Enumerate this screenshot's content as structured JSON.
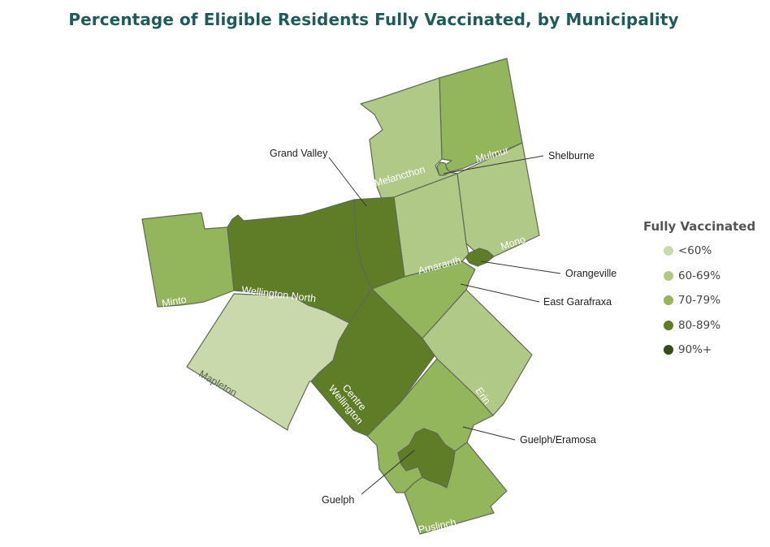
{
  "title": "Percentage of Eligible Residents Fully Vaccinated, by Municipality",
  "legend": {
    "title": "Fully Vaccinated",
    "items": [
      {
        "label": "<60%",
        "color": "#cad9ac"
      },
      {
        "label": "60-69%",
        "color": "#b1c986"
      },
      {
        "label": "70-79%",
        "color": "#93b55c"
      },
      {
        "label": "80-89%",
        "color": "#5e7d26"
      },
      {
        "label": "90%+",
        "color": "#334d14"
      }
    ]
  },
  "regions": [
    {
      "name": "Melancthon",
      "band": "60-69%",
      "color": "#b1c986"
    },
    {
      "name": "Mulmur",
      "band": "70-79%",
      "color": "#93b55c"
    },
    {
      "name": "Shelburne",
      "band": "70-79%",
      "color": "#93b55c"
    },
    {
      "name": "Grand Valley",
      "band": "80-89%",
      "color": "#5e7d26"
    },
    {
      "name": "Amaranth",
      "band": "60-69%",
      "color": "#b1c986"
    },
    {
      "name": "Mono",
      "band": "60-69%",
      "color": "#b1c986"
    },
    {
      "name": "Orangeville",
      "band": "80-89%",
      "color": "#5e7d26"
    },
    {
      "name": "East Garafraxa",
      "band": "70-79%",
      "color": "#93b55c"
    },
    {
      "name": "Minto",
      "band": "70-79%",
      "color": "#93b55c"
    },
    {
      "name": "Wellington North",
      "band": "80-89%",
      "color": "#5e7d26"
    },
    {
      "name": "Mapleton",
      "band": "<60%",
      "color": "#cad9ac"
    },
    {
      "name": "Centre Wellington",
      "band": "80-89%",
      "color": "#5e7d26"
    },
    {
      "name": "Erin",
      "band": "60-69%",
      "color": "#b1c986"
    },
    {
      "name": "Guelph/Eramosa",
      "band": "70-79%",
      "color": "#93b55c"
    },
    {
      "name": "Guelph",
      "band": "80-89%",
      "color": "#5e7d26"
    },
    {
      "name": "Puslinch",
      "band": "70-79%",
      "color": "#93b55c"
    }
  ],
  "labels": {
    "melancthon": "Melancthon",
    "mulmur": "Mulmur",
    "amaranth": "Amaranth",
    "mono": "Mono",
    "minto": "Minto",
    "wellington_north": "Wellington North",
    "mapleton": "Mapleton",
    "centre": "Centre",
    "wellington": "Wellington",
    "erin": "Erin",
    "puslinch": "Puslinch"
  },
  "callouts": {
    "grand_valley": "Grand Valley",
    "shelburne": "Shelburne",
    "orangeville": "Orangeville",
    "east_garafraxa": "East Garafraxa",
    "guelph_eramosa": "Guelph/Eramosa",
    "guelph": "Guelph"
  }
}
